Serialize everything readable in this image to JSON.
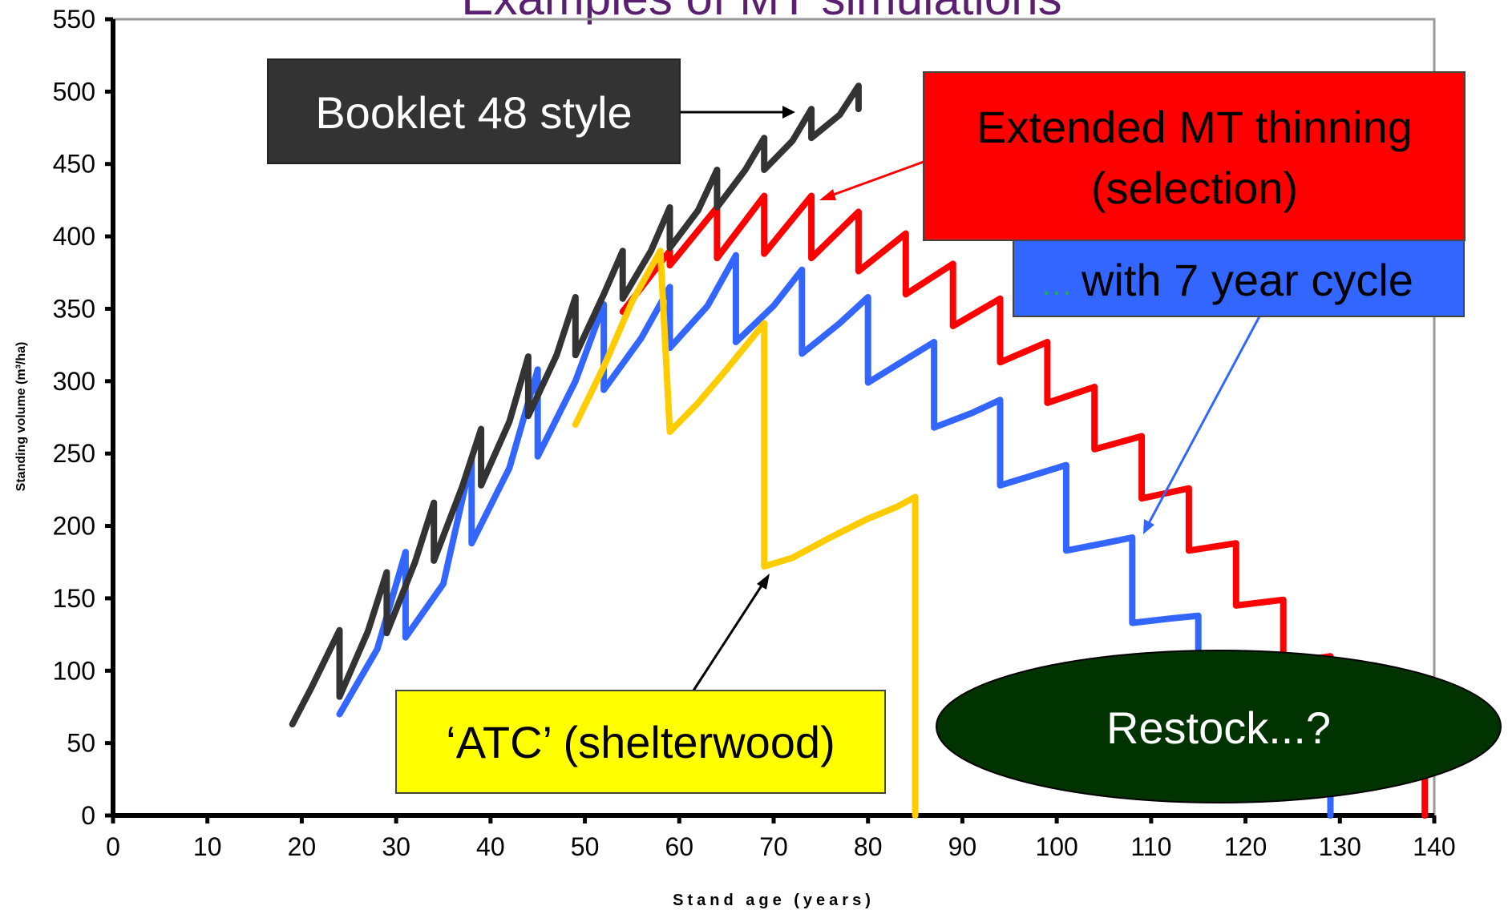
{
  "chart_data": {
    "type": "line",
    "title": "Examples of MT simulations",
    "xlabel": "Stand age (years)",
    "ylabel": "Standing volume (m³/ha)",
    "xlim": [
      0,
      140
    ],
    "ylim": [
      0,
      550
    ],
    "xticks": [
      "0",
      "10",
      "20",
      "30",
      "40",
      "50",
      "60",
      "70",
      "80",
      "90",
      "100",
      "110",
      "120",
      "130",
      "140"
    ],
    "yticks": [
      "0",
      "50",
      "100",
      "150",
      "200",
      "250",
      "300",
      "350",
      "400",
      "450",
      "500",
      "550"
    ],
    "grid": false,
    "series": [
      {
        "name": "Extended MT thinning (selection)",
        "color": "#ff0000",
        "points": [
          [
            54,
            348
          ],
          [
            59,
            390
          ],
          [
            59,
            380
          ],
          [
            64,
            420
          ],
          [
            64,
            385
          ],
          [
            69,
            428
          ],
          [
            69,
            388
          ],
          [
            74,
            428
          ],
          [
            74,
            385
          ],
          [
            79,
            417
          ],
          [
            79,
            376
          ],
          [
            84,
            402
          ],
          [
            84,
            360
          ],
          [
            89,
            381
          ],
          [
            89,
            338
          ],
          [
            94,
            357
          ],
          [
            94,
            313
          ],
          [
            99,
            327
          ],
          [
            99,
            285
          ],
          [
            104,
            296
          ],
          [
            104,
            253
          ],
          [
            109,
            262
          ],
          [
            109,
            219
          ],
          [
            114,
            226
          ],
          [
            114,
            183
          ],
          [
            119,
            188
          ],
          [
            119,
            145
          ],
          [
            124,
            149
          ],
          [
            124,
            105
          ],
          [
            129,
            110
          ],
          [
            129,
            85
          ],
          [
            134,
            100
          ],
          [
            139,
            75
          ],
          [
            139,
            0
          ]
        ]
      },
      {
        "name": "with 7 year cycle",
        "color": "#3366ff",
        "points": [
          [
            24,
            70
          ],
          [
            28,
            115
          ],
          [
            31,
            182
          ],
          [
            31,
            123
          ],
          [
            35,
            160
          ],
          [
            38,
            247
          ],
          [
            38,
            188
          ],
          [
            42,
            240
          ],
          [
            45,
            308
          ],
          [
            45,
            248
          ],
          [
            49,
            300
          ],
          [
            52,
            353
          ],
          [
            52,
            294
          ],
          [
            56,
            330
          ],
          [
            59,
            365
          ],
          [
            59,
            323
          ],
          [
            63,
            352
          ],
          [
            66,
            387
          ],
          [
            66,
            327
          ],
          [
            70,
            352
          ],
          [
            73,
            377
          ],
          [
            73,
            319
          ],
          [
            77,
            340
          ],
          [
            80,
            358
          ],
          [
            80,
            299
          ],
          [
            84,
            315
          ],
          [
            87,
            327
          ],
          [
            87,
            268
          ],
          [
            91,
            278
          ],
          [
            94,
            287
          ],
          [
            94,
            228
          ],
          [
            98,
            236
          ],
          [
            101,
            242
          ],
          [
            101,
            183
          ],
          [
            105,
            188
          ],
          [
            108,
            192
          ],
          [
            108,
            133
          ],
          [
            112,
            136
          ],
          [
            115,
            138
          ],
          [
            115,
            75
          ],
          [
            122,
            75
          ],
          [
            125,
            72
          ],
          [
            129,
            30
          ],
          [
            129,
            0
          ]
        ]
      },
      {
        "name": "Booklet 48 style",
        "color": "#333333",
        "points": [
          [
            19,
            63
          ],
          [
            21,
            88
          ],
          [
            24,
            128
          ],
          [
            24,
            82
          ],
          [
            27,
            127
          ],
          [
            29,
            168
          ],
          [
            29,
            126
          ],
          [
            32,
            175
          ],
          [
            34,
            216
          ],
          [
            34,
            176
          ],
          [
            37,
            227
          ],
          [
            39,
            267
          ],
          [
            39,
            228
          ],
          [
            42,
            272
          ],
          [
            44,
            317
          ],
          [
            44,
            276
          ],
          [
            47,
            318
          ],
          [
            49,
            358
          ],
          [
            49,
            318
          ],
          [
            52,
            360
          ],
          [
            54,
            390
          ],
          [
            54,
            357
          ],
          [
            57,
            390
          ],
          [
            59,
            420
          ],
          [
            59,
            392
          ],
          [
            62,
            418
          ],
          [
            64,
            446
          ],
          [
            64,
            420
          ],
          [
            67,
            446
          ],
          [
            69,
            468
          ],
          [
            69,
            446
          ],
          [
            72,
            466
          ],
          [
            74,
            488
          ],
          [
            74,
            468
          ],
          [
            77,
            484
          ],
          [
            79,
            504
          ],
          [
            79,
            488
          ]
        ]
      },
      {
        "name": "‘ATC’ (shelterwood)",
        "color": "#ffcc00",
        "points": [
          [
            49,
            270
          ],
          [
            52,
            310
          ],
          [
            55,
            355
          ],
          [
            58,
            390
          ],
          [
            59,
            265
          ],
          [
            62,
            285
          ],
          [
            65,
            308
          ],
          [
            69,
            340
          ],
          [
            69,
            172
          ],
          [
            72,
            178
          ],
          [
            76,
            192
          ],
          [
            80,
            205
          ],
          [
            83,
            213
          ],
          [
            85,
            220
          ],
          [
            85,
            0
          ]
        ]
      }
    ],
    "annotations": {
      "booklet": "Booklet 48 style",
      "extended_line1": "Extended MT thinning",
      "extended_line2": "(selection)",
      "cycle_prefix": "…",
      "cycle": "with 7 year cycle",
      "atc": "‘ATC’ (shelterwood)",
      "restock": "Restock...?"
    }
  }
}
